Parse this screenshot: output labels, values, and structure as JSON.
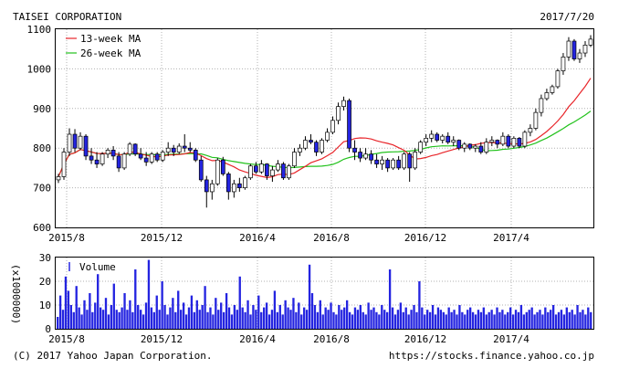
{
  "header": {
    "company": "TAISEI CORPORATION",
    "date": "2017/7/20"
  },
  "footer": {
    "copyright": "(C) 2017 Yahoo Japan Corporation.",
    "url": "https://stocks.finance.yahoo.co.jp"
  },
  "colors": {
    "ma13": "#e8252a",
    "ma26": "#22c21c",
    "candle_up_fill": "#ffffff",
    "candle_down_fill": "#2424e0",
    "candle_edge": "#000000",
    "volume": "#2424e0"
  },
  "chart_data": [
    {
      "type": "candlestick",
      "x_tick_labels": [
        "2015/8",
        "2015/12",
        "2016/4",
        "2016/8",
        "2016/12",
        "2017/4"
      ],
      "y_tick_labels": [
        "600",
        "700",
        "800",
        "900",
        "1000",
        "1100"
      ],
      "ylim": [
        600,
        1100
      ],
      "grid": true,
      "legend_position": "top-left",
      "legend": [
        "13-week MA",
        "26-week MA"
      ],
      "weeks": [
        {
          "o": 720,
          "h": 735,
          "l": 712,
          "c": 728
        },
        {
          "o": 728,
          "h": 800,
          "l": 720,
          "c": 790
        },
        {
          "o": 790,
          "h": 850,
          "l": 780,
          "c": 835
        },
        {
          "o": 835,
          "h": 848,
          "l": 790,
          "c": 800
        },
        {
          "o": 800,
          "h": 840,
          "l": 795,
          "c": 830
        },
        {
          "o": 830,
          "h": 835,
          "l": 770,
          "c": 780
        },
        {
          "o": 780,
          "h": 800,
          "l": 760,
          "c": 770
        },
        {
          "o": 770,
          "h": 790,
          "l": 750,
          "c": 760
        },
        {
          "o": 760,
          "h": 790,
          "l": 755,
          "c": 785
        },
        {
          "o": 785,
          "h": 800,
          "l": 775,
          "c": 795
        },
        {
          "o": 795,
          "h": 805,
          "l": 770,
          "c": 780
        },
        {
          "o": 780,
          "h": 790,
          "l": 740,
          "c": 750
        },
        {
          "o": 750,
          "h": 790,
          "l": 745,
          "c": 785
        },
        {
          "o": 785,
          "h": 815,
          "l": 780,
          "c": 810
        },
        {
          "o": 810,
          "h": 812,
          "l": 780,
          "c": 785
        },
        {
          "o": 785,
          "h": 800,
          "l": 770,
          "c": 775
        },
        {
          "o": 775,
          "h": 790,
          "l": 755,
          "c": 765
        },
        {
          "o": 765,
          "h": 790,
          "l": 760,
          "c": 785
        },
        {
          "o": 785,
          "h": 790,
          "l": 765,
          "c": 770
        },
        {
          "o": 770,
          "h": 795,
          "l": 765,
          "c": 790
        },
        {
          "o": 790,
          "h": 815,
          "l": 780,
          "c": 800
        },
        {
          "o": 800,
          "h": 808,
          "l": 780,
          "c": 790
        },
        {
          "o": 790,
          "h": 812,
          "l": 785,
          "c": 805
        },
        {
          "o": 805,
          "h": 835,
          "l": 790,
          "c": 800
        },
        {
          "o": 800,
          "h": 815,
          "l": 790,
          "c": 795
        },
        {
          "o": 795,
          "h": 800,
          "l": 765,
          "c": 770
        },
        {
          "o": 770,
          "h": 780,
          "l": 715,
          "c": 720
        },
        {
          "o": 720,
          "h": 730,
          "l": 650,
          "c": 690
        },
        {
          "o": 690,
          "h": 720,
          "l": 670,
          "c": 710
        },
        {
          "o": 710,
          "h": 775,
          "l": 705,
          "c": 770
        },
        {
          "o": 770,
          "h": 778,
          "l": 730,
          "c": 735
        },
        {
          "o": 735,
          "h": 740,
          "l": 670,
          "c": 690
        },
        {
          "o": 690,
          "h": 720,
          "l": 675,
          "c": 710
        },
        {
          "o": 710,
          "h": 725,
          "l": 690,
          "c": 700
        },
        {
          "o": 700,
          "h": 730,
          "l": 695,
          "c": 725
        },
        {
          "o": 725,
          "h": 760,
          "l": 720,
          "c": 755
        },
        {
          "o": 755,
          "h": 765,
          "l": 735,
          "c": 740
        },
        {
          "o": 740,
          "h": 770,
          "l": 735,
          "c": 760
        },
        {
          "o": 760,
          "h": 762,
          "l": 720,
          "c": 730
        },
        {
          "o": 730,
          "h": 755,
          "l": 715,
          "c": 745
        },
        {
          "o": 745,
          "h": 770,
          "l": 740,
          "c": 760
        },
        {
          "o": 760,
          "h": 765,
          "l": 720,
          "c": 725
        },
        {
          "o": 725,
          "h": 760,
          "l": 720,
          "c": 755
        },
        {
          "o": 755,
          "h": 800,
          "l": 750,
          "c": 790
        },
        {
          "o": 790,
          "h": 810,
          "l": 780,
          "c": 800
        },
        {
          "o": 800,
          "h": 830,
          "l": 795,
          "c": 820
        },
        {
          "o": 820,
          "h": 835,
          "l": 810,
          "c": 815
        },
        {
          "o": 815,
          "h": 820,
          "l": 780,
          "c": 790
        },
        {
          "o": 790,
          "h": 825,
          "l": 785,
          "c": 820
        },
        {
          "o": 820,
          "h": 850,
          "l": 815,
          "c": 840
        },
        {
          "o": 840,
          "h": 880,
          "l": 835,
          "c": 870
        },
        {
          "o": 870,
          "h": 915,
          "l": 860,
          "c": 905
        },
        {
          "o": 905,
          "h": 930,
          "l": 895,
          "c": 920
        },
        {
          "o": 920,
          "h": 925,
          "l": 790,
          "c": 800
        },
        {
          "o": 800,
          "h": 820,
          "l": 770,
          "c": 790
        },
        {
          "o": 790,
          "h": 800,
          "l": 765,
          "c": 775
        },
        {
          "o": 775,
          "h": 800,
          "l": 770,
          "c": 785
        },
        {
          "o": 785,
          "h": 795,
          "l": 760,
          "c": 770
        },
        {
          "o": 770,
          "h": 785,
          "l": 750,
          "c": 760
        },
        {
          "o": 760,
          "h": 780,
          "l": 745,
          "c": 770
        },
        {
          "o": 770,
          "h": 775,
          "l": 740,
          "c": 750
        },
        {
          "o": 750,
          "h": 775,
          "l": 745,
          "c": 770
        },
        {
          "o": 770,
          "h": 780,
          "l": 745,
          "c": 750
        },
        {
          "o": 750,
          "h": 790,
          "l": 745,
          "c": 785
        },
        {
          "o": 785,
          "h": 790,
          "l": 715,
          "c": 750
        },
        {
          "o": 750,
          "h": 800,
          "l": 745,
          "c": 790
        },
        {
          "o": 790,
          "h": 820,
          "l": 785,
          "c": 815
        },
        {
          "o": 815,
          "h": 835,
          "l": 805,
          "c": 825
        },
        {
          "o": 825,
          "h": 845,
          "l": 815,
          "c": 835
        },
        {
          "o": 835,
          "h": 840,
          "l": 815,
          "c": 820
        },
        {
          "o": 820,
          "h": 835,
          "l": 812,
          "c": 830
        },
        {
          "o": 830,
          "h": 840,
          "l": 810,
          "c": 815
        },
        {
          "o": 815,
          "h": 830,
          "l": 805,
          "c": 820
        },
        {
          "o": 820,
          "h": 822,
          "l": 795,
          "c": 800
        },
        {
          "o": 800,
          "h": 815,
          "l": 790,
          "c": 810
        },
        {
          "o": 810,
          "h": 812,
          "l": 795,
          "c": 800
        },
        {
          "o": 800,
          "h": 810,
          "l": 790,
          "c": 805
        },
        {
          "o": 805,
          "h": 815,
          "l": 785,
          "c": 790
        },
        {
          "o": 790,
          "h": 825,
          "l": 785,
          "c": 815
        },
        {
          "o": 815,
          "h": 830,
          "l": 805,
          "c": 820
        },
        {
          "o": 820,
          "h": 822,
          "l": 800,
          "c": 810
        },
        {
          "o": 810,
          "h": 840,
          "l": 805,
          "c": 830
        },
        {
          "o": 830,
          "h": 835,
          "l": 800,
          "c": 805
        },
        {
          "o": 805,
          "h": 830,
          "l": 800,
          "c": 825
        },
        {
          "o": 825,
          "h": 828,
          "l": 800,
          "c": 805
        },
        {
          "o": 805,
          "h": 845,
          "l": 800,
          "c": 840
        },
        {
          "o": 840,
          "h": 860,
          "l": 830,
          "c": 850
        },
        {
          "o": 850,
          "h": 900,
          "l": 845,
          "c": 890
        },
        {
          "o": 890,
          "h": 935,
          "l": 880,
          "c": 925
        },
        {
          "o": 925,
          "h": 950,
          "l": 920,
          "c": 940
        },
        {
          "o": 940,
          "h": 960,
          "l": 935,
          "c": 955
        },
        {
          "o": 955,
          "h": 1000,
          "l": 950,
          "c": 995
        },
        {
          "o": 995,
          "h": 1040,
          "l": 985,
          "c": 1030
        },
        {
          "o": 1030,
          "h": 1080,
          "l": 1020,
          "c": 1070
        },
        {
          "o": 1070,
          "h": 1075,
          "l": 1020,
          "c": 1025
        },
        {
          "o": 1025,
          "h": 1050,
          "l": 1015,
          "c": 1040
        },
        {
          "o": 1040,
          "h": 1070,
          "l": 1030,
          "c": 1060
        },
        {
          "o": 1060,
          "h": 1085,
          "l": 1055,
          "c": 1075
        }
      ],
      "ma13": [],
      "ma26": []
    },
    {
      "type": "bar",
      "legend": "Volume",
      "ylabel": "(x1000000)",
      "y_tick_labels": [
        "0",
        "10",
        "20",
        "30"
      ],
      "ylim": [
        0,
        30
      ],
      "x_tick_labels": [
        "2015/8",
        "2015/12",
        "2016/4",
        "2016/8",
        "2016/12",
        "2017/4"
      ],
      "grid": true,
      "values": [
        5,
        14,
        8,
        22,
        16,
        10,
        7,
        18,
        9,
        6,
        12,
        8,
        15,
        7,
        11,
        23,
        9,
        8,
        13,
        6,
        10,
        19,
        8,
        7,
        9,
        15,
        8,
        12,
        7,
        25,
        10,
        8,
        6,
        11,
        29,
        9,
        7,
        14,
        8,
        20,
        10,
        6,
        9,
        13,
        7,
        16,
        8,
        11,
        6,
        9,
        14,
        7,
        12,
        8,
        10,
        18,
        7,
        9,
        6,
        13,
        8,
        11,
        7,
        15,
        9,
        6,
        10,
        8,
        22,
        9,
        7,
        12,
        6,
        10,
        8,
        14,
        7,
        9,
        11,
        6,
        8,
        16,
        7,
        10,
        6,
        12,
        9,
        8,
        13,
        7,
        11,
        6,
        9,
        8,
        27,
        15,
        10,
        7,
        12,
        6,
        9,
        8,
        11,
        7,
        6,
        10,
        8,
        9,
        12,
        7,
        6,
        9,
        8,
        10,
        7,
        6,
        11,
        8,
        9,
        7,
        6,
        10,
        8,
        7,
        25,
        9,
        6,
        8,
        11,
        7,
        9,
        6,
        8,
        10,
        7,
        20,
        9,
        6,
        8,
        7,
        10,
        6,
        9,
        8,
        7,
        6,
        9,
        7,
        8,
        6,
        10,
        7,
        6,
        8,
        9,
        7,
        6,
        8,
        7,
        9,
        6,
        7,
        8,
        6,
        9,
        7,
        8,
        6,
        7,
        9,
        6,
        8,
        7,
        10,
        6,
        7,
        8,
        9,
        6,
        7,
        8,
        6,
        9,
        7,
        8,
        10,
        6,
        7,
        8,
        6,
        9,
        7,
        8,
        6,
        10,
        7,
        8,
        6,
        9,
        7
      ]
    }
  ]
}
